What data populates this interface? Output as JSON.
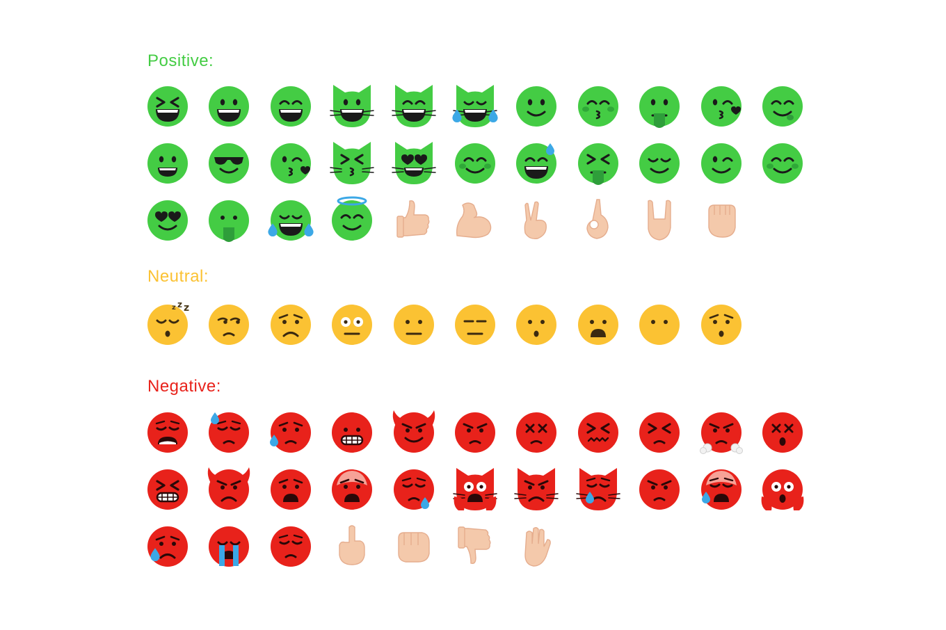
{
  "palette": {
    "positive": "#44cc44",
    "neutral": "#fbc233",
    "negative": "#e8221b",
    "feature_positive": "#1a1a1a",
    "feature_negative": "#2a0808",
    "feature_neutral": "#3b2a10",
    "skin": "#f4c9ab",
    "skin_shade": "#e5ad8e",
    "tear": "#3ca8e6",
    "blush_positive": "#2fa838",
    "tongue_positive": "#2e9e3a",
    "tongue_negative": "#b01010",
    "halo": "#3ca8e6"
  },
  "sections": [
    {
      "id": "positive",
      "title": "Positive:",
      "color": "#44cc44",
      "rows": [
        [
          "laughing-squint",
          "grinning-big",
          "grinning-smile",
          "cat-grinning",
          "cat-smile-eyes",
          "cat-joy",
          "slight-smile",
          "kissing-blush",
          "tongue-out",
          "kissing-heart",
          "yum"
        ],
        [
          "grinning-face",
          "sunglasses",
          "kiss-wink",
          "cat-kissing",
          "cat-heart-eyes",
          "relieved-blush",
          "grin-sweat",
          "tongue-squint",
          "relieved",
          "wink",
          "blush-smile"
        ],
        [
          "heart-eyes",
          "tongue-plain",
          "joy",
          "innocent-halo",
          "thumbs-up",
          "flexed-biceps",
          "victory-hand",
          "ok-hand",
          "horns-hand",
          "raised-fist"
        ]
      ]
    },
    {
      "id": "neutral",
      "title": "Neutral:",
      "color": "#fbc233",
      "rows": [
        [
          "sleeping",
          "unamused",
          "worried",
          "flushed",
          "neutral",
          "expressionless",
          "hushed",
          "open-mouth",
          "no-mouth",
          "surprised"
        ]
      ]
    },
    {
      "id": "negative",
      "title": "Negative:",
      "color": "#e8221b",
      "rows": [
        [
          "weary",
          "sweat-downcast",
          "disappointed-relieved",
          "grimacing",
          "devil-smile",
          "angry",
          "dizzy-eyes",
          "confounded",
          "persevering",
          "steam-triumph",
          "dizzy-shocked"
        ],
        [
          "grimace-squint",
          "devil-angry",
          "anguished",
          "cold-sweat-face",
          "sleepy-tear",
          "cat-scream",
          "cat-pouting",
          "cat-crying",
          "pouting",
          "tired-sweat",
          "scream"
        ],
        [
          "crying-tear",
          "loud-crying",
          "pensive",
          "middle-finger",
          "fist-bump",
          "thumbs-down",
          "raised-hand"
        ]
      ]
    }
  ]
}
